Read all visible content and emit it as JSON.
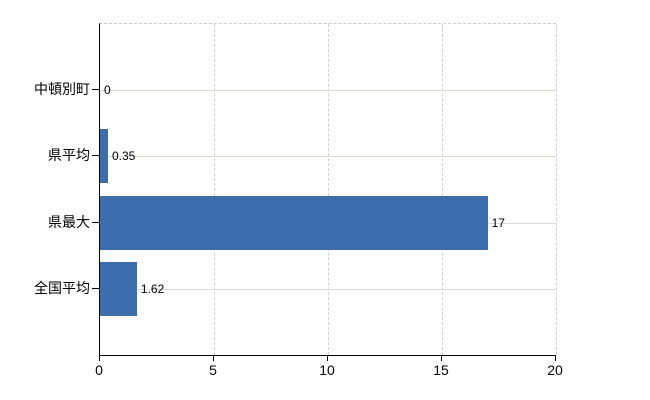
{
  "chart_data": {
    "type": "bar",
    "orientation": "horizontal",
    "title": "",
    "xlabel": "",
    "ylabel": "",
    "categories": [
      "中頓別町",
      "県平均",
      "県最大",
      "全国平均"
    ],
    "values": [
      0,
      0.35,
      17,
      1.62
    ],
    "value_labels": [
      "0",
      "0.35",
      "17",
      "1.62"
    ],
    "x_ticks": [
      "0",
      "5",
      "10",
      "15",
      "20"
    ],
    "x_tick_values": [
      0,
      5,
      10,
      15,
      20
    ],
    "xlim": [
      0,
      20
    ],
    "grid": "on",
    "legend": "none",
    "bar_color": "#3d6daa",
    "axis_color": "#000000",
    "horizontal_gridline_color": "#d5ddd5",
    "vertical_gridline_color": "#d6cdd1",
    "text_color": "#000000"
  }
}
